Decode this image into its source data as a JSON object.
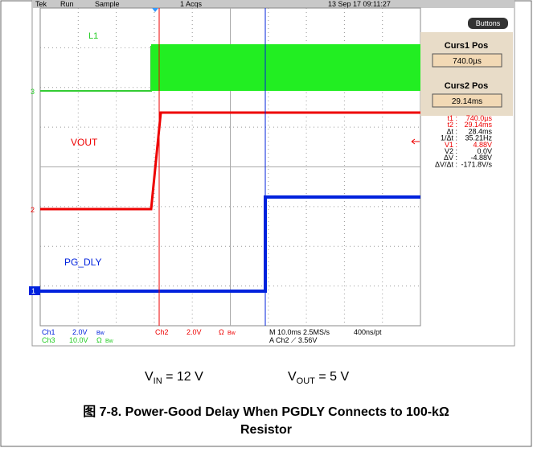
{
  "scope": {
    "status": {
      "brand": "Tek",
      "mode": "Run",
      "acq": "Sample",
      "count": "1 Acqs",
      "date": "13 Sep 17 09:11:27",
      "button": "Buttons"
    },
    "panel": {
      "curs1_title": "Curs1 Pos",
      "curs1_value": "740.0µs",
      "curs2_title": "Curs2 Pos",
      "curs2_value": "29.14ms"
    },
    "readout": [
      [
        "t1 :",
        "740.0µs"
      ],
      [
        "t2 :",
        "29.14ms"
      ],
      [
        "Δt :",
        "28.4ms"
      ],
      [
        "1/Δt :",
        "35.21Hz"
      ],
      [
        "V1 :",
        "4.88V"
      ],
      [
        "V2 :",
        "0.0V"
      ],
      [
        "ΔV :",
        "-4.88V"
      ],
      [
        "ΔV/Δt :",
        "-171.8V/s"
      ]
    ],
    "labels": {
      "l1": "L1",
      "vout": "VOUT",
      "pg": "PG_DLY",
      "m3": "3",
      "m2": "2",
      "m1": "1"
    },
    "footer": {
      "ch1": "Ch1",
      "ch1_scale": "2.0V",
      "ch1_bw": "Bw",
      "ch2": "Ch2",
      "ch2_scale": "2.0V",
      "ch2_ohm": "Ω",
      "ch2_bw": "Bw",
      "time": "M 10.0ms 2.5MS/s",
      "rate": "400ns/pt",
      "ch3": "Ch3",
      "ch3_scale": "10.0V",
      "ch3_ohm": "Ω",
      "ch3_bw": "Bw",
      "trigger": "A Ch2 ⟋ 3.56V"
    }
  },
  "conditions": [
    {
      "v": "V",
      "sub": "IN",
      "rest": " = 12 V"
    },
    {
      "v": "V",
      "sub": "OUT",
      "rest": " = 5 V"
    }
  ],
  "caption": {
    "line1": "图 7-8. Power-Good Delay When PGDLY Connects to 100-kΩ",
    "line2": "Resistor"
  }
}
